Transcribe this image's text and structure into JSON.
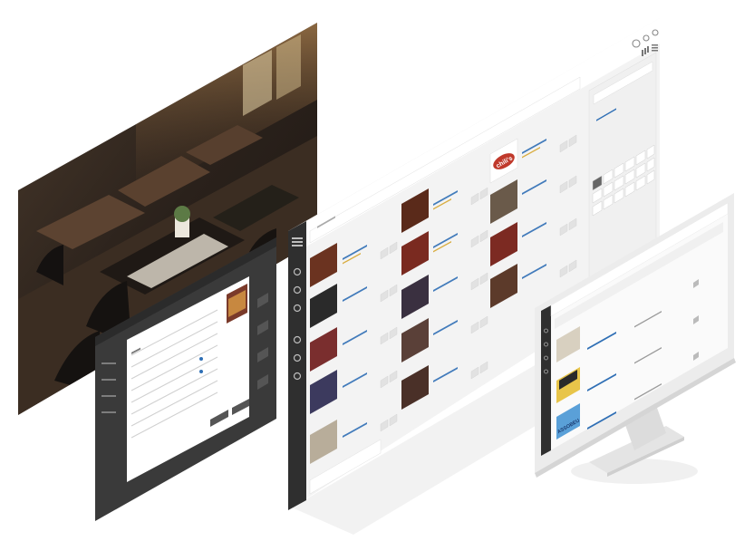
{
  "brand_card_logo": "chili's",
  "monitor_logo_text": "ASSOBEU",
  "icons": [
    "user-icon",
    "help-icon",
    "settings-icon",
    "grid-icon",
    "menu-icon",
    "search-icon"
  ],
  "colors": {
    "sidebar_dark": "#2f2f2f",
    "panel_dark": "#3a3a3a",
    "accent_red": "#c0392b",
    "background": "#ffffff",
    "screen_bg": "#f4f4f4"
  }
}
